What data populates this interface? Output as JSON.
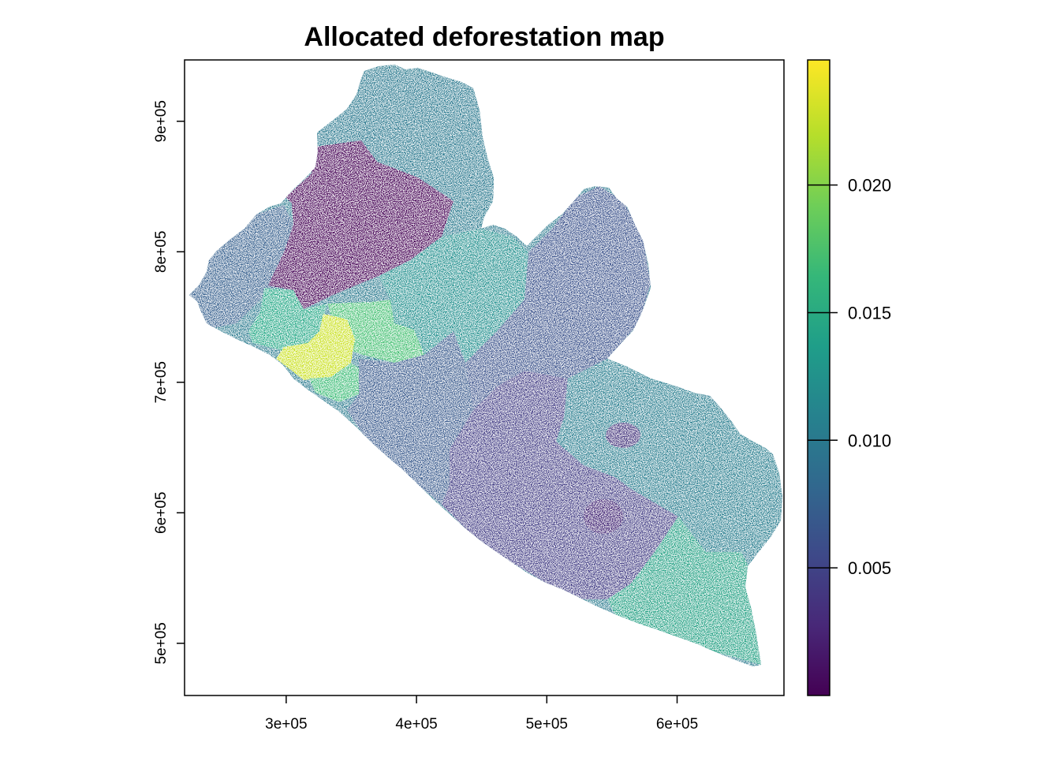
{
  "title": "Allocated deforestation map",
  "map": {
    "type": "raster",
    "palette": [
      "#440154",
      "#482878",
      "#3e4989",
      "#31688e",
      "#26828e",
      "#1f9e89",
      "#35b779",
      "#6ece58",
      "#b5de2b",
      "#fde725"
    ],
    "x_ticks": [
      {
        "value": 300000,
        "label": "3e+05"
      },
      {
        "value": 400000,
        "label": "4e+05"
      },
      {
        "value": 500000,
        "label": "5e+05"
      },
      {
        "value": 600000,
        "label": "6e+05"
      }
    ],
    "y_ticks": [
      {
        "value": 500000,
        "label": "5e+05"
      },
      {
        "value": 600000,
        "label": "6e+05"
      },
      {
        "value": 700000,
        "label": "7e+05"
      },
      {
        "value": 800000,
        "label": "8e+05"
      },
      {
        "value": 900000,
        "label": "9e+05"
      }
    ],
    "xlim": [
      222000,
      682000
    ],
    "ylim": [
      460000,
      947000
    ]
  },
  "legend": {
    "min": 0.0,
    "max": 0.0249,
    "ticks": [
      {
        "value": 0.005,
        "label": "0.005"
      },
      {
        "value": 0.01,
        "label": "0.010"
      },
      {
        "value": 0.015,
        "label": "0.015"
      },
      {
        "value": 0.02,
        "label": "0.020"
      }
    ]
  }
}
